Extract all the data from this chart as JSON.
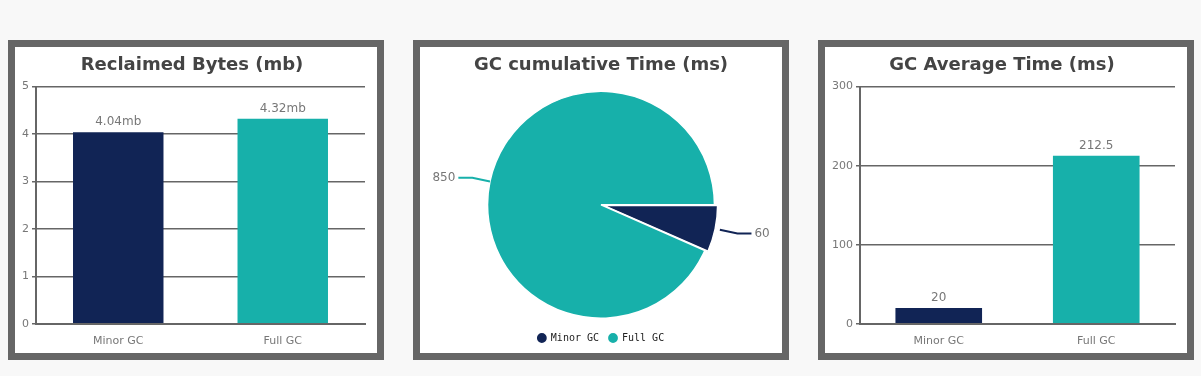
{
  "chart_data": [
    {
      "type": "bar",
      "title": "Reclaimed Bytes (mb)",
      "categories": [
        "Minor GC",
        "Full GC"
      ],
      "values": [
        4.04,
        4.32
      ],
      "colors": [
        "#112455",
        "#17b0aa"
      ],
      "value_labels": [
        "4.04mb",
        "4.32mb"
      ],
      "ylim": [
        0,
        5
      ],
      "yticks": [
        0,
        1,
        2,
        3,
        4,
        5
      ],
      "grid": "y",
      "legend": false
    },
    {
      "type": "pie",
      "title": "GC cumulative Time (ms)",
      "categories": [
        "Minor GC",
        "Full GC"
      ],
      "values": [
        60,
        850
      ],
      "colors": [
        "#112455",
        "#17b0aa"
      ],
      "data_labels": true,
      "legend": "bottom"
    },
    {
      "type": "bar",
      "title": "GC Average Time (ms)",
      "categories": [
        "Minor GC",
        "Full GC"
      ],
      "values": [
        20,
        212.5
      ],
      "colors": [
        "#112455",
        "#17b0aa"
      ],
      "data_labels": true,
      "ylim": [
        0,
        300
      ],
      "yticks": [
        0,
        100,
        200,
        300
      ],
      "grid": "y",
      "legend": false
    }
  ]
}
